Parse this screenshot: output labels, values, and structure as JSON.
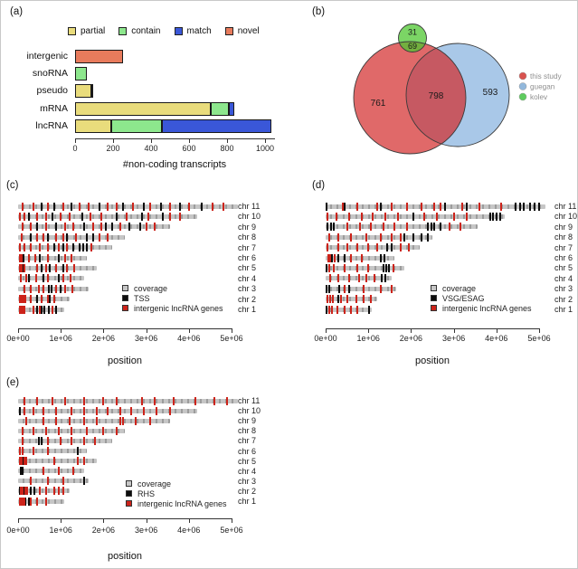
{
  "labels": {
    "a": "(a)",
    "b": "(b)",
    "c": "(c)",
    "d": "(d)",
    "e": "(e)"
  },
  "chart_data": [
    {
      "type": "bar",
      "stacked": true,
      "orientation": "horizontal",
      "xlabel": "#non-coding transcripts",
      "categories": [
        "intergenic",
        "snoRNA",
        "pseudo",
        "mRNA",
        "lncRNA"
      ],
      "legend": [
        {
          "label": "partial",
          "color": "#e9dc7c"
        },
        {
          "label": "contain",
          "color": "#8de78d"
        },
        {
          "label": "match",
          "color": "#3a57d8"
        },
        {
          "label": "novel",
          "color": "#e87b5c"
        }
      ],
      "series": [
        {
          "name": "partial",
          "values": [
            0,
            0,
            85,
            715,
            190
          ]
        },
        {
          "name": "contain",
          "values": [
            0,
            62,
            8,
            95,
            265
          ]
        },
        {
          "name": "match",
          "values": [
            0,
            0,
            0,
            30,
            580
          ]
        },
        {
          "name": "novel",
          "values": [
            250,
            0,
            0,
            0,
            0
          ]
        }
      ],
      "xticks": [
        0,
        200,
        400,
        600,
        800,
        1000
      ],
      "xlim": [
        0,
        1050
      ],
      "grid": false
    },
    {
      "type": "venn",
      "sets": [
        {
          "name": "this study",
          "color": "#d9534f"
        },
        {
          "name": "guegan",
          "color": "#92b8dc"
        },
        {
          "name": "kolev",
          "color": "#5ecc5e"
        }
      ],
      "counts": {
        "this_study_only": 761,
        "guegan_only": 593,
        "kolev_only": 31,
        "this_study_and_guegan": 798,
        "this_study_and_kolev": 69
      },
      "legend_position": "right"
    },
    {
      "type": "genome-track",
      "panel": "c",
      "xlabel": "position",
      "xticks": [
        "0e+00",
        "1e+06",
        "2e+06",
        "3e+06",
        "4e+06",
        "5e+06"
      ],
      "xlim_mb": [
        0,
        5
      ],
      "legend": [
        {
          "label": "coverage",
          "color": "#c6c6c6"
        },
        {
          "label": "TSS",
          "color": "#0d0d0d"
        },
        {
          "label": "intergenic lncRNA genes",
          "color": "#cc231a"
        }
      ],
      "chromosomes": [
        {
          "name": "chr 1",
          "length_mb": 1.08,
          "black_mb": [
            0.45,
            0.55,
            0.62,
            0.72,
            0.88
          ],
          "red_mb": [
            0.04,
            0.07,
            0.1,
            0.14,
            0.35,
            0.5,
            0.8
          ]
        },
        {
          "name": "chr 2",
          "length_mb": 1.2,
          "black_mb": [
            0.15,
            0.45,
            0.75
          ],
          "red_mb": [
            0.04,
            0.08,
            0.12,
            0.16,
            0.3,
            0.55,
            0.7,
            0.85
          ]
        },
        {
          "name": "chr 3",
          "length_mb": 1.65,
          "black_mb": [
            0.72,
            0.78,
            1.0
          ],
          "red_mb": [
            0.15,
            0.3,
            0.48,
            0.6,
            0.9,
            1.1,
            1.28
          ]
        },
        {
          "name": "chr 4",
          "length_mb": 1.55,
          "black_mb": [
            0.25,
            0.6,
            0.95
          ],
          "red_mb": [
            0.06,
            0.2,
            0.42,
            0.7,
            1.05,
            1.22
          ]
        },
        {
          "name": "chr 5",
          "length_mb": 1.85,
          "black_mb": [
            0.1,
            0.55,
            0.75,
            1.05
          ],
          "red_mb": [
            0.04,
            0.08,
            0.15,
            0.45,
            0.65,
            0.9,
            1.15,
            1.32
          ]
        },
        {
          "name": "chr 6",
          "length_mb": 1.62,
          "black_mb": [
            0.12,
            0.5,
            0.95
          ],
          "red_mb": [
            0.05,
            0.09,
            0.25,
            0.4,
            0.7,
            1.1,
            1.26
          ]
        },
        {
          "name": "chr 7",
          "length_mb": 2.2,
          "black_mb": [
            0.85,
            1.05,
            1.3,
            1.45,
            1.52,
            1.6
          ],
          "red_mb": [
            0.05,
            0.15,
            0.3,
            0.5,
            0.7,
            0.95,
            1.15,
            1.72
          ]
        },
        {
          "name": "chr 8",
          "length_mb": 2.5,
          "black_mb": [
            0.3,
            0.7,
            1.15,
            1.6,
            1.75
          ],
          "red_mb": [
            0.08,
            0.45,
            0.6,
            0.9,
            1.05,
            1.35,
            1.9,
            2.1
          ]
        },
        {
          "name": "chr 9",
          "length_mb": 3.55,
          "black_mb": [
            0.45,
            0.9,
            1.55,
            2.05,
            2.2,
            2.6,
            2.85
          ],
          "red_mb": [
            0.1,
            0.3,
            0.65,
            1.1,
            1.3,
            1.75,
            1.95,
            2.4,
            3.0,
            3.2
          ]
        },
        {
          "name": "chr 10",
          "length_mb": 4.2,
          "black_mb": [
            0.25,
            0.8,
            1.5,
            2.3,
            2.9,
            3.4
          ],
          "red_mb": [
            0.05,
            0.15,
            0.45,
            0.65,
            1.0,
            1.2,
            1.7,
            1.95,
            2.55,
            3.05,
            3.55,
            3.8
          ]
        },
        {
          "name": "chr 11",
          "length_mb": 5.15,
          "black_mb": [
            0.55,
            0.85,
            1.25,
            1.9,
            2.45,
            2.95,
            3.35,
            3.8,
            4.3
          ],
          "red_mb": [
            0.1,
            0.35,
            0.7,
            1.05,
            1.45,
            1.65,
            2.1,
            2.3,
            2.7,
            3.1,
            3.55,
            4.0,
            4.55,
            4.8
          ]
        }
      ]
    },
    {
      "type": "genome-track",
      "panel": "d",
      "xlabel": "position",
      "xticks": [
        "0e+00",
        "1e+06",
        "2e+06",
        "3e+06",
        "4e+06",
        "5e+06"
      ],
      "xlim_mb": [
        0,
        5
      ],
      "legend": [
        {
          "label": "coverage",
          "color": "#c6c6c6"
        },
        {
          "label": "VSG/ESAG",
          "color": "#0d0d0d"
        },
        {
          "label": "intergenic lncRNA genes",
          "color": "#cc231a"
        }
      ],
      "chromosomes": [
        {
          "name": "chr 1",
          "length_mb": 1.08,
          "black_mb": [
            0.02,
            1.02
          ],
          "red_mb": [
            0.08,
            0.15,
            0.28,
            0.45,
            0.6,
            0.75
          ]
        },
        {
          "name": "chr 2",
          "length_mb": 1.2,
          "black_mb": [
            0.3
          ],
          "red_mb": [
            0.05,
            0.1,
            0.18,
            0.35,
            0.5,
            0.72,
            0.9,
            1.05
          ]
        },
        {
          "name": "chr 3",
          "length_mb": 1.65,
          "black_mb": [
            0.03,
            0.08,
            0.32,
            0.55
          ],
          "red_mb": [
            0.45,
            0.9,
            1.3,
            1.55
          ]
        },
        {
          "name": "chr 4",
          "length_mb": 1.55,
          "black_mb": [
            1.32,
            1.4
          ],
          "red_mb": [
            0.1,
            0.3,
            0.55,
            0.78,
            0.95,
            1.15
          ]
        },
        {
          "name": "chr 5",
          "length_mb": 1.85,
          "black_mb": [
            0.02,
            1.35,
            1.42,
            1.48
          ],
          "red_mb": [
            0.08,
            0.2,
            0.45,
            0.75,
            1.0,
            1.58
          ]
        },
        {
          "name": "chr 6",
          "length_mb": 1.62,
          "black_mb": [
            0.15,
            0.3,
            0.45,
            1.3,
            1.38
          ],
          "red_mb": [
            0.06,
            0.1,
            0.22,
            0.6,
            0.85
          ]
        },
        {
          "name": "chr 7",
          "length_mb": 2.2,
          "black_mb": [
            1.45,
            1.55
          ],
          "red_mb": [
            0.05,
            0.3,
            0.5,
            0.75,
            1.0,
            1.2,
            1.75,
            1.95
          ]
        },
        {
          "name": "chr 8",
          "length_mb": 2.5,
          "black_mb": [
            1.85,
            2.05,
            2.25,
            2.4
          ],
          "red_mb": [
            0.08,
            0.3,
            0.6,
            0.95,
            1.3,
            1.55,
            1.75
          ]
        },
        {
          "name": "chr 9",
          "length_mb": 3.55,
          "black_mb": [
            0.05,
            0.12,
            0.2,
            2.4,
            2.48,
            2.55,
            2.7
          ],
          "red_mb": [
            0.5,
            0.8,
            1.05,
            1.35,
            1.6,
            1.9,
            2.9,
            3.15
          ]
        },
        {
          "name": "chr 10",
          "length_mb": 4.2,
          "black_mb": [
            2.05,
            3.85,
            3.92,
            4.0,
            4.08
          ],
          "red_mb": [
            0.05,
            0.25,
            0.55,
            0.85,
            1.1,
            1.4,
            1.7,
            2.3,
            2.6,
            3.0,
            3.3
          ]
        },
        {
          "name": "chr 11",
          "length_mb": 5.15,
          "black_mb": [
            0.02,
            0.45,
            1.3,
            2.8,
            3.3,
            4.45,
            4.55,
            4.65,
            4.78,
            4.9,
            5.0
          ],
          "red_mb": [
            0.4,
            0.75,
            1.2,
            1.55,
            1.9,
            2.25,
            2.55,
            2.7,
            3.2,
            3.6,
            4.1
          ]
        }
      ]
    },
    {
      "type": "genome-track",
      "panel": "e",
      "xlabel": "position",
      "xticks": [
        "0e+00",
        "1e+06",
        "2e+06",
        "3e+06",
        "4e+06",
        "5e+06"
      ],
      "xlim_mb": [
        0,
        5
      ],
      "legend": [
        {
          "label": "coverage",
          "color": "#c6c6c6"
        },
        {
          "label": "RHS",
          "color": "#0d0d0d"
        },
        {
          "label": "intergenic lncRNA genes",
          "color": "#cc231a"
        }
      ],
      "chromosomes": [
        {
          "name": "chr 1",
          "length_mb": 1.08,
          "black_mb": [
            0.1,
            0.18,
            0.25
          ],
          "red_mb": [
            0.04,
            0.07,
            0.1,
            0.14,
            0.3,
            0.45,
            0.65
          ]
        },
        {
          "name": "chr 2",
          "length_mb": 1.2,
          "black_mb": [
            0.05,
            0.12,
            0.3,
            0.38
          ],
          "red_mb": [
            0.06,
            0.1,
            0.16,
            0.22,
            0.5,
            0.65,
            0.85,
            0.95,
            1.05
          ]
        },
        {
          "name": "chr 3",
          "length_mb": 1.65,
          "black_mb": [
            1.55
          ],
          "red_mb": [
            0.3,
            0.7,
            1.05
          ]
        },
        {
          "name": "chr 4",
          "length_mb": 1.55,
          "black_mb": [
            0.06,
            0.1
          ],
          "red_mb": [
            0.6,
            0.95,
            1.3
          ]
        },
        {
          "name": "chr 5",
          "length_mb": 1.85,
          "black_mb": [
            0.1
          ],
          "red_mb": [
            0.04,
            0.08,
            0.14,
            0.2,
            0.85,
            1.4,
            1.55
          ]
        },
        {
          "name": "chr 6",
          "length_mb": 1.62,
          "black_mb": [
            1.4
          ],
          "red_mb": [
            0.04,
            0.1,
            0.35,
            0.7
          ]
        },
        {
          "name": "chr 7",
          "length_mb": 2.2,
          "black_mb": [
            0.48,
            0.55
          ],
          "red_mb": [
            0.1,
            0.7,
            1.0,
            1.25,
            1.55,
            1.8
          ]
        },
        {
          "name": "chr 8",
          "length_mb": 2.5,
          "black_mb": [],
          "red_mb": [
            0.1,
            0.35,
            0.65,
            0.95,
            1.25,
            1.6,
            2.0,
            2.3
          ]
        },
        {
          "name": "chr 9",
          "length_mb": 3.55,
          "black_mb": [],
          "red_mb": [
            0.2,
            0.6,
            0.9,
            1.2,
            1.55,
            1.85,
            2.4,
            2.45,
            2.75,
            3.1
          ]
        },
        {
          "name": "chr 10",
          "length_mb": 4.2,
          "black_mb": [
            0.05
          ],
          "red_mb": [
            0.15,
            0.35,
            0.6,
            0.9,
            1.25,
            1.55,
            1.85,
            2.1,
            2.4,
            2.65,
            2.95,
            3.25,
            3.55
          ]
        },
        {
          "name": "chr 11",
          "length_mb": 5.15,
          "black_mb": [],
          "red_mb": [
            0.15,
            0.45,
            0.8,
            1.1,
            1.55,
            2.0,
            2.3,
            2.9,
            3.2,
            3.65,
            4.15,
            4.6,
            4.9
          ]
        }
      ]
    }
  ],
  "colors": {
    "venn_red_fill": "#D32A2A",
    "venn_blue_fill": "#84B0DE",
    "venn_green_fill": "#4FC732",
    "axis": "#333333",
    "text": "#1a1a1a",
    "legend_text_gray": "#8f8f8f"
  }
}
